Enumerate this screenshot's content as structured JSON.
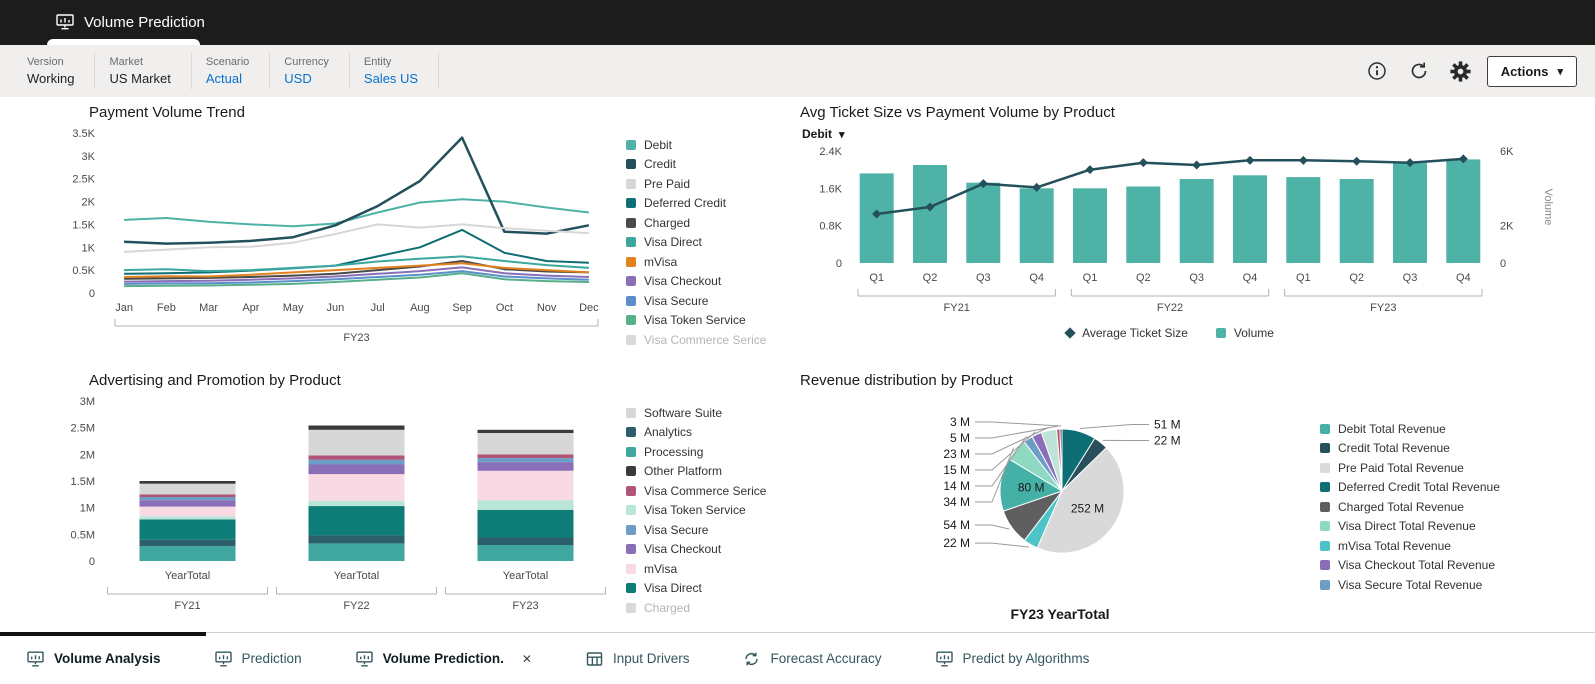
{
  "header": {
    "title": "Volume Prediction"
  },
  "icons": {
    "caret": "▾",
    "close": "✕"
  },
  "pov": {
    "items": [
      {
        "label": "Version",
        "value": "Working"
      },
      {
        "label": "Market",
        "value": "US Market"
      },
      {
        "label": "Scenario",
        "value": "Actual",
        "accent": true
      },
      {
        "label": "Currency",
        "value": "USD",
        "accent": true
      },
      {
        "label": "Entity",
        "value": "Sales US",
        "accent": true
      }
    ],
    "actions_label": "Actions"
  },
  "tabs": [
    {
      "label": "Volume Analysis",
      "active": true
    },
    {
      "label": "Prediction"
    },
    {
      "label": "Volume Prediction.",
      "closable": true
    },
    {
      "label": "Input Drivers"
    },
    {
      "label": "Forecast Accuracy"
    },
    {
      "label": "Predict by Algorithms"
    }
  ],
  "chart_data": [
    {
      "id": "payment_volume_trend",
      "type": "line",
      "title": "Payment Volume Trend",
      "x": [
        "Jan",
        "Feb",
        "Mar",
        "Apr",
        "May",
        "Jun",
        "Jul",
        "Aug",
        "Sep",
        "Oct",
        "Nov",
        "Dec"
      ],
      "group_label": "FY23",
      "ylim": [
        0,
        3500
      ],
      "yaxis": {
        "ticks": [
          0,
          500,
          1000,
          1500,
          2000,
          2500,
          3000,
          3500
        ],
        "labels": [
          "0",
          "0.5K",
          "1K",
          "1.5K",
          "2K",
          "2.5K",
          "3K",
          "3.5K"
        ]
      },
      "series": [
        {
          "name": "Debit",
          "color": "#4fb2a7",
          "values": [
            1600,
            1640,
            1560,
            1500,
            1460,
            1520,
            1760,
            1980,
            2050,
            2000,
            1870,
            1760
          ]
        },
        {
          "name": "Credit",
          "color": "#24505c",
          "values": [
            1120,
            1080,
            1100,
            1140,
            1220,
            1480,
            1900,
            2450,
            3400,
            1340,
            1300,
            1480
          ]
        },
        {
          "name": "Pre Paid",
          "color": "#d7d7d7",
          "values": [
            900,
            950,
            1000,
            1010,
            1100,
            1290,
            1500,
            1430,
            1500,
            1420,
            1360,
            1310
          ]
        },
        {
          "name": "Deferred Credit",
          "color": "#0d6e74",
          "values": [
            420,
            430,
            450,
            490,
            540,
            600,
            800,
            1000,
            1380,
            880,
            700,
            660
          ]
        },
        {
          "name": "Charged",
          "color": "#4a4a4a",
          "values": [
            310,
            320,
            330,
            350,
            380,
            420,
            500,
            580,
            700,
            520,
            470,
            450
          ]
        },
        {
          "name": "Visa Direct",
          "color": "#3aa89d",
          "values": [
            500,
            520,
            480,
            500,
            550,
            600,
            690,
            750,
            800,
            700,
            610,
            550
          ]
        },
        {
          "name": "mVisa",
          "color": "#e0821d",
          "values": [
            350,
            365,
            360,
            400,
            450,
            500,
            550,
            600,
            650,
            550,
            500,
            450
          ]
        },
        {
          "name": "Visa Checkout",
          "color": "#8a6fb8",
          "values": [
            250,
            260,
            270,
            290,
            320,
            360,
            420,
            480,
            560,
            430,
            380,
            350
          ]
        },
        {
          "name": "Visa Secure",
          "color": "#5b8fc9",
          "values": [
            200,
            210,
            215,
            230,
            260,
            300,
            350,
            400,
            480,
            360,
            320,
            290
          ]
        },
        {
          "name": "Visa Token Service",
          "color": "#57b08a",
          "values": [
            150,
            160,
            165,
            180,
            200,
            240,
            290,
            340,
            430,
            300,
            260,
            240
          ]
        },
        {
          "name": "Visa Commerce Serice",
          "color": "#c9c9c9",
          "values": [],
          "muted": true
        }
      ]
    },
    {
      "id": "avg_ticket_vs_volume",
      "type": "combo",
      "title": "Avg Ticket Size vs Payment Volume by Product",
      "filter_label": "Debit",
      "x": [
        "Q1",
        "Q2",
        "Q3",
        "Q4",
        "Q1",
        "Q2",
        "Q3",
        "Q4",
        "Q1",
        "Q2",
        "Q3",
        "Q4"
      ],
      "groups": [
        {
          "label": "FY21",
          "span": 4
        },
        {
          "label": "FY22",
          "span": 4
        },
        {
          "label": "FY23",
          "span": 4
        }
      ],
      "left_axis": {
        "lim": [
          0,
          2400
        ],
        "ticks": [
          0,
          800,
          1600,
          2400
        ],
        "labels": [
          "0",
          "0.8K",
          "1.6K",
          "2.4K"
        ]
      },
      "right_axis": {
        "lim": [
          0,
          6000
        ],
        "ticks": [
          0,
          2000,
          6000
        ],
        "labels": [
          "0",
          "2K",
          "6K"
        ],
        "title": "Volume"
      },
      "bars": {
        "name": "Volume",
        "color": "#4fb2a7",
        "values": [
          4800,
          5250,
          4300,
          4000,
          4000,
          4100,
          4500,
          4700,
          4600,
          4500,
          5350,
          5550
        ]
      },
      "line": {
        "name": "Average Ticket Size",
        "color": "#24505c",
        "values": [
          1050,
          1200,
          1700,
          1620,
          2000,
          2150,
          2100,
          2200,
          2200,
          2180,
          2150,
          2230
        ]
      }
    },
    {
      "id": "advertising_promotion",
      "type": "stacked_bar",
      "title": "Advertising and Promotion by Product",
      "categories": [
        "YearTotal",
        "YearTotal",
        "YearTotal"
      ],
      "groups": [
        "FY21",
        "FY22",
        "FY23"
      ],
      "ylim": [
        0,
        3000000
      ],
      "yaxis": {
        "ticks": [
          0,
          500000,
          1000000,
          1500000,
          2000000,
          2500000,
          3000000
        ],
        "labels": [
          "0",
          "0.5M",
          "1M",
          "1.5M",
          "2M",
          "2.5M",
          "3M"
        ]
      },
      "stack_order": [
        "Processing",
        "Analytics",
        "Visa Direct",
        "Visa Token Service",
        "mVisa",
        "Visa Checkout",
        "Visa Secure",
        "Visa Commerce Serice",
        "Software Suite",
        "Other Platform"
      ],
      "series": [
        {
          "name": "Software Suite",
          "color": "#d7d7d7",
          "values": [
            200000,
            480000,
            400000
          ]
        },
        {
          "name": "Analytics",
          "color": "#2b5f6b",
          "values": [
            120000,
            150000,
            140000
          ]
        },
        {
          "name": "Processing",
          "color": "#3fa7a0",
          "values": [
            280000,
            330000,
            300000
          ]
        },
        {
          "name": "Other Platform",
          "color": "#3a3a3a",
          "values": [
            50000,
            80000,
            60000
          ]
        },
        {
          "name": "Visa Commerce Serice",
          "color": "#b05578",
          "values": [
            50000,
            80000,
            70000
          ]
        },
        {
          "name": "Visa Token Service",
          "color": "#b9e6d8",
          "values": [
            60000,
            100000,
            180000
          ]
        },
        {
          "name": "Visa Secure",
          "color": "#6d9dc5",
          "values": [
            60000,
            90000,
            80000
          ]
        },
        {
          "name": "Visa Checkout",
          "color": "#8a6fb8",
          "values": [
            120000,
            180000,
            160000
          ]
        },
        {
          "name": "mVisa",
          "color": "#f9d9e3",
          "values": [
            180000,
            500000,
            550000
          ]
        },
        {
          "name": "Visa Direct",
          "color": "#0e7d78",
          "values": [
            380000,
            550000,
            520000
          ]
        },
        {
          "name": "Charged",
          "color": "#9a9a9a",
          "values": [
            0,
            0,
            0
          ],
          "muted": true
        }
      ]
    },
    {
      "id": "revenue_distribution",
      "type": "pie",
      "title": "Revenue distribution by Product",
      "caption": "FY23 YearTotal",
      "slices": [
        {
          "label": "51 M",
          "value": 51,
          "color": "#0d6e74"
        },
        {
          "label": "22 M",
          "value": 22,
          "color": "#27505c"
        },
        {
          "label": "252 M",
          "value": 252,
          "color": "#d9d9d9",
          "inside": true
        },
        {
          "label": "22 M",
          "value": 22,
          "color": "#4ec3c8"
        },
        {
          "label": "54 M",
          "value": 54,
          "color": "#5f5f5f"
        },
        {
          "label": "80 M",
          "value": 80,
          "color": "#45b0a5",
          "inside": true
        },
        {
          "label": "34 M",
          "value": 34,
          "color": "#8fd8c2"
        },
        {
          "label": "14 M",
          "value": 14,
          "color": "#6d9dc5"
        },
        {
          "label": "15 M",
          "value": 15,
          "color": "#8a6fb8"
        },
        {
          "label": "23 M",
          "value": 23,
          "color": "#bfe3d8"
        },
        {
          "label": "5 M",
          "value": 5,
          "color": "#b05578"
        },
        {
          "label": "3 M",
          "value": 3,
          "color": "#3a3a3a"
        }
      ],
      "legend": [
        {
          "label": "Debit Total Revenue",
          "color": "#45b0a5"
        },
        {
          "label": "Credit Total Revenue",
          "color": "#27505c"
        },
        {
          "label": "Pre Paid Total Revenue",
          "color": "#d9d9d9"
        },
        {
          "label": "Deferred Credit Total Revenue",
          "color": "#0d6e74"
        },
        {
          "label": "Charged Total Revenue",
          "color": "#5f5f5f"
        },
        {
          "label": "Visa Direct Total Revenue",
          "color": "#8fd8c2"
        },
        {
          "label": "mVisa Total Revenue",
          "color": "#4ec3c8"
        },
        {
          "label": "Visa Checkout Total Revenue",
          "color": "#8a6fb8"
        },
        {
          "label": "Visa Secure Total Revenue",
          "color": "#6d9dc5"
        }
      ]
    }
  ]
}
